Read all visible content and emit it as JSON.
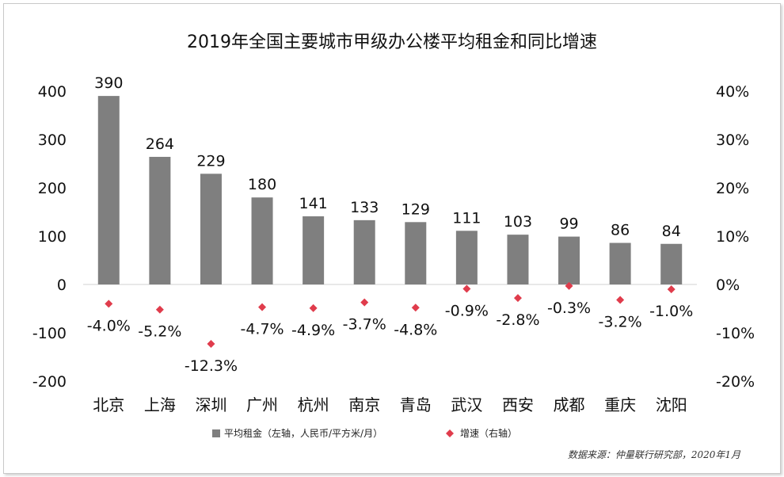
{
  "chart_data": {
    "type": "bar",
    "title": "2019年全国主要城市甲级办公楼平均租金和同比增速",
    "categories": [
      "北京",
      "上海",
      "深圳",
      "广州",
      "杭州",
      "南京",
      "青岛",
      "武汉",
      "西安",
      "成都",
      "重庆",
      "沈阳"
    ],
    "series": [
      {
        "name": "平均租金（左轴，人民币/平方米/月）",
        "type": "bar",
        "axis": "left",
        "color": "#7f7f7f",
        "values": [
          390,
          264,
          229,
          180,
          141,
          133,
          129,
          111,
          103,
          99,
          86,
          84
        ],
        "labels": [
          "390",
          "264",
          "229",
          "180",
          "141",
          "133",
          "129",
          "111",
          "103",
          "99",
          "86",
          "84"
        ]
      },
      {
        "name": "增速（右轴）",
        "type": "scatter",
        "marker": "diamond",
        "axis": "right",
        "color": "#e03c4c",
        "values": [
          -4.0,
          -5.2,
          -12.3,
          -4.7,
          -4.9,
          -3.7,
          -4.8,
          -0.9,
          -2.8,
          -0.3,
          -3.2,
          -1.0
        ],
        "labels": [
          "-4.0%",
          "-5.2%",
          "-12.3%",
          "-4.7%",
          "-4.9%",
          "-3.7%",
          "-4.8%",
          "-0.9%",
          "-2.8%",
          "-0.3%",
          "-3.2%",
          "-1.0%"
        ]
      }
    ],
    "y_left": {
      "min": -200,
      "max": 400,
      "ticks": [
        "400",
        "300",
        "200",
        "100",
        "0",
        "-100",
        "-200"
      ]
    },
    "y_right": {
      "min": -20,
      "max": 40,
      "ticks": [
        "40%",
        "30%",
        "20%",
        "10%",
        "0%",
        "-10%",
        "-20%"
      ]
    },
    "grid": false,
    "legend_position": "bottom"
  },
  "source": "数据来源：仲量联行研究部，2020年1月"
}
